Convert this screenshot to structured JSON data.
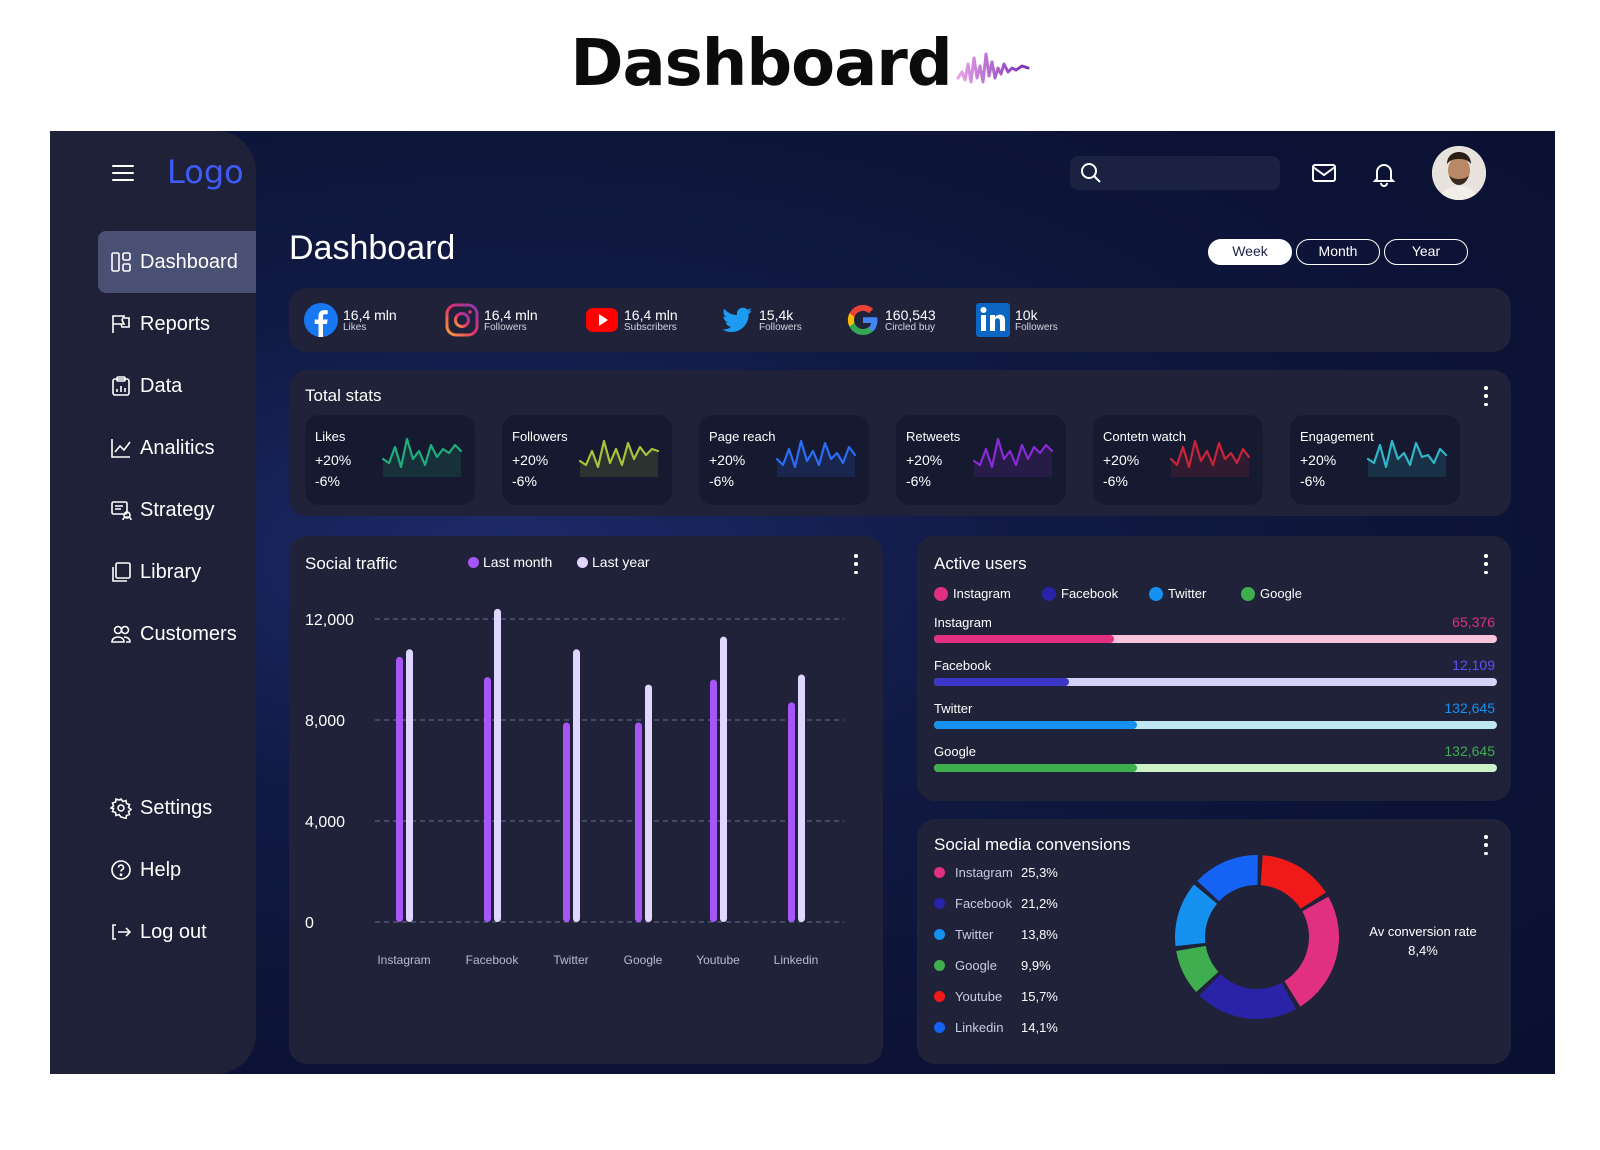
{
  "page_heading": "Dashboard",
  "sidebar": {
    "logo": "Logo",
    "items": [
      {
        "label": "Dashboard",
        "icon": "dashboard-icon",
        "active": true
      },
      {
        "label": "Reports",
        "icon": "reports-icon"
      },
      {
        "label": "Data",
        "icon": "data-icon"
      },
      {
        "label": "Analitics",
        "icon": "analytics-icon"
      },
      {
        "label": "Strategy",
        "icon": "strategy-icon"
      },
      {
        "label": "Library",
        "icon": "library-icon"
      },
      {
        "label": "Customers",
        "icon": "customers-icon"
      }
    ],
    "bottom_items": [
      {
        "label": "Settings",
        "icon": "gear-icon"
      },
      {
        "label": "Help",
        "icon": "help-icon"
      },
      {
        "label": "Log out",
        "icon": "logout-icon"
      }
    ]
  },
  "topbar": {
    "search_placeholder": "",
    "icons": [
      "search-icon",
      "mail-icon",
      "bell-icon",
      "avatar"
    ]
  },
  "main": {
    "title": "Dashboard",
    "periods": [
      {
        "label": "Week",
        "active": true
      },
      {
        "label": "Month"
      },
      {
        "label": "Year"
      }
    ]
  },
  "social": [
    {
      "value": "16,4 mln",
      "sub": "Likes",
      "icon": "facebook-icon"
    },
    {
      "value": "16,4 mln",
      "sub": "Followers",
      "icon": "instagram-icon"
    },
    {
      "value": "16,4 mln",
      "sub": "Subscribers",
      "icon": "youtube-icon"
    },
    {
      "value": "15,4k",
      "sub": "Followers",
      "icon": "twitter-icon"
    },
    {
      "value": "160,543",
      "sub": "Circled buy",
      "icon": "google-icon"
    },
    {
      "value": "10k",
      "sub": "Followers",
      "icon": "linkedin-icon"
    }
  ],
  "total_stats": {
    "title": "Total stats",
    "tiles": [
      {
        "label": "Likes",
        "up": "+20%",
        "down": "-6%",
        "color": "#1fae7a"
      },
      {
        "label": "Followers",
        "up": "+20%",
        "down": "-6%",
        "color": "#a8c23a"
      },
      {
        "label": "Page reach",
        "up": "+20%",
        "down": "-6%",
        "color": "#2d6cf6"
      },
      {
        "label": "Retweets",
        "up": "+20%",
        "down": "-6%",
        "color": "#8a2ad8"
      },
      {
        "label": "Contetn watch",
        "up": "+20%",
        "down": "-6%",
        "color": "#c8243a"
      },
      {
        "label": "Engagement",
        "up": "+20%",
        "down": "-6%",
        "color": "#2fb6c8"
      }
    ]
  },
  "social_traffic": {
    "title": "Social traffic",
    "legend": [
      {
        "label": "Last month",
        "color": "#a855f7"
      },
      {
        "label": "Last year",
        "color": "#e0d6ff"
      }
    ]
  },
  "chart_data": {
    "type": "bar",
    "title": "Social traffic",
    "categories": [
      "Instagram",
      "Facebook",
      "Twitter",
      "Google",
      "Youtube",
      "Linkedin"
    ],
    "series": [
      {
        "name": "Last month",
        "values": [
          10500,
          9700,
          7900,
          7900,
          9600,
          8700
        ]
      },
      {
        "name": "Last year",
        "values": [
          10800,
          12400,
          10800,
          9400,
          11300,
          9800
        ]
      }
    ],
    "yticks": [
      "0",
      "4,000",
      "8,000",
      "12,000"
    ],
    "ylim": [
      0,
      12000
    ],
    "grid": true,
    "legend_position": "top"
  },
  "active_users": {
    "title": "Active users",
    "legend": [
      {
        "label": "Instagram",
        "color": "#e0307f"
      },
      {
        "label": "Facebook",
        "color": "#2a23a8"
      },
      {
        "label": "Twitter",
        "color": "#1591f0"
      },
      {
        "label": "Google",
        "color": "#3fae4f"
      }
    ],
    "rows": [
      {
        "label": "Instagram",
        "value": "65,376",
        "color": "#e0307f",
        "track": "#f9c3de",
        "fraction": 0.32
      },
      {
        "label": "Facebook",
        "value": "12,109",
        "color": "#3b35c8",
        "track": "#d4d2f6",
        "fraction": 0.24
      },
      {
        "label": "Twitter",
        "value": "132,645",
        "color": "#1591f0",
        "track": "#bfe7f2",
        "fraction": 0.36
      },
      {
        "label": "Google",
        "value": "132,645",
        "color": "#3fae4f",
        "track": "#cdf2c8",
        "fraction": 0.36
      }
    ]
  },
  "conversions": {
    "title": "Social media convensions",
    "rows": [
      {
        "label": "Instagram",
        "pct": "25,3%",
        "color": "#e0307f",
        "value": 25.3
      },
      {
        "label": "Facebook",
        "pct": "21,2%",
        "color": "#2a23a8",
        "value": 21.2
      },
      {
        "label": "Twitter",
        "pct": "13,8%",
        "color": "#1591f0",
        "value": 13.8
      },
      {
        "label": "Google",
        "pct": "9,9%",
        "color": "#3fae4f",
        "value": 9.9
      },
      {
        "label": "Youtube",
        "pct": "15,7%",
        "color": "#f01a1a",
        "value": 15.7
      },
      {
        "label": "Linkedin",
        "pct": "14,1%",
        "color": "#1463f5",
        "value": 14.1
      }
    ],
    "rate_label": "Av conversion rate",
    "rate_value": "8,4%"
  }
}
